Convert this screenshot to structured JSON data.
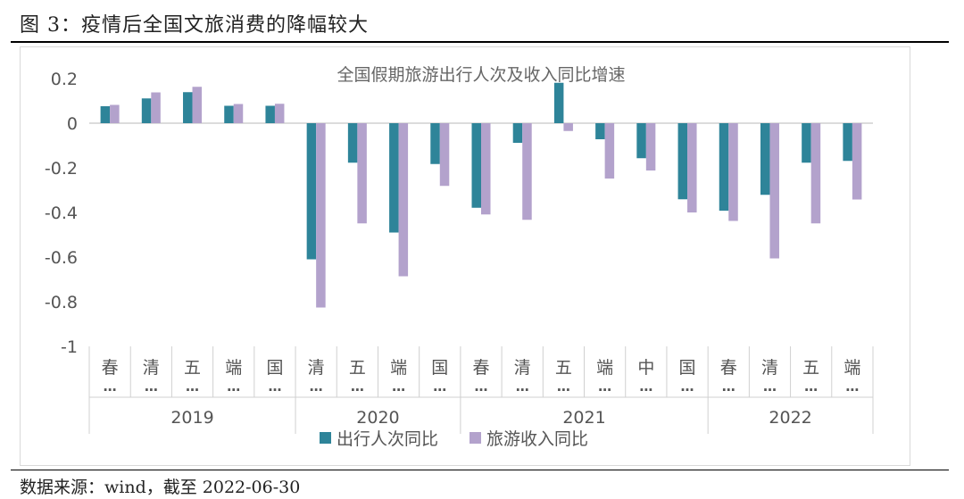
{
  "figure_title": "图 3：疫情后全国文旅消费的降幅较大",
  "source_note": "数据来源：wind，截至 2022-06-30",
  "colors": {
    "travel": "#2E8499",
    "revenue": "#B3A2CC",
    "axis": "#d0d0d0",
    "text": "#555555"
  },
  "chart_data": {
    "type": "bar",
    "title": "全国假期旅游出行人次及收入同比增速",
    "xlabel": "",
    "ylabel": "",
    "ylim": [
      -1,
      0.2
    ],
    "yticks": [
      0.2,
      0,
      -0.2,
      -0.4,
      -0.6,
      -0.8,
      -1
    ],
    "ytick_labels": [
      "0.2",
      "0",
      "-0.2",
      "-0.4",
      "-0.6",
      "-0.8",
      "-1"
    ],
    "categories": [
      "春…",
      "清…",
      "五",
      "端…",
      "国…",
      "清…",
      "五…",
      "端…",
      "国…",
      "春…",
      "清…",
      "五…",
      "端…",
      "中…",
      "国…",
      "春…",
      "清…",
      "五…",
      "端…"
    ],
    "category_chars": [
      "春",
      "清",
      "五",
      "端",
      "国",
      "清",
      "五",
      "端",
      "国",
      "春",
      "清",
      "五",
      "端",
      "中",
      "国",
      "春",
      "清",
      "五",
      "端"
    ],
    "groups": [
      {
        "label": "2019",
        "start": 0,
        "end": 4
      },
      {
        "label": "2020",
        "start": 5,
        "end": 8
      },
      {
        "label": "2021",
        "start": 9,
        "end": 14
      },
      {
        "label": "2022",
        "start": 15,
        "end": 18
      }
    ],
    "series": [
      {
        "name": "出行人次同比",
        "color": "#2E8499",
        "values": [
          0.076,
          0.111,
          0.139,
          0.078,
          0.078,
          -0.61,
          -0.177,
          -0.49,
          -0.183,
          -0.379,
          -0.088,
          0.181,
          -0.072,
          -0.157,
          -0.341,
          -0.392,
          -0.321,
          -0.177,
          -0.169
        ]
      },
      {
        "name": "旅游收入同比",
        "color": "#B3A2CC",
        "values": [
          0.082,
          0.138,
          0.163,
          0.086,
          0.087,
          -0.826,
          -0.449,
          -0.686,
          -0.281,
          -0.409,
          -0.433,
          -0.035,
          -0.248,
          -0.212,
          -0.4,
          -0.438,
          -0.606,
          -0.449,
          -0.342
        ]
      }
    ],
    "legend_position": "bottom-center",
    "grid": false
  }
}
